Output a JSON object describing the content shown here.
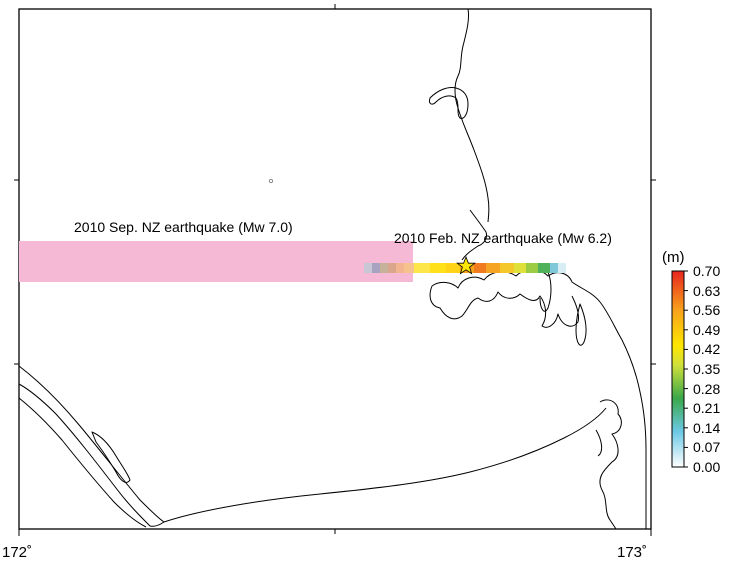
{
  "map": {
    "lon_range": [
      172,
      173
    ],
    "frame_color": "#000000",
    "coastline_color": "#000000"
  },
  "axes": {
    "x_ticks": [
      {
        "value": 172,
        "label": "172˚"
      },
      {
        "value": 173,
        "label": "173˚"
      }
    ]
  },
  "annotations": {
    "sep_quake": {
      "label": "2010 Sep. NZ earthquake (Mw 7.0)",
      "fault_color": "#f5b8d5"
    },
    "feb_quake": {
      "label": "2010 Feb. NZ earthquake (Mw 6.2)",
      "epicenter_marker": "star-icon",
      "epicenter_color": "#ffe600"
    }
  },
  "colorbar": {
    "unit": "(m)",
    "ticks": [
      "0.70",
      "0.63",
      "0.56",
      "0.49",
      "0.42",
      "0.35",
      "0.28",
      "0.21",
      "0.14",
      "0.07",
      "0.00"
    ],
    "colors": [
      "#ffffff",
      "#6cc9e6",
      "#3aa84a",
      "#cfe03a",
      "#ffe600",
      "#f7a21c",
      "#e8251e"
    ]
  }
}
